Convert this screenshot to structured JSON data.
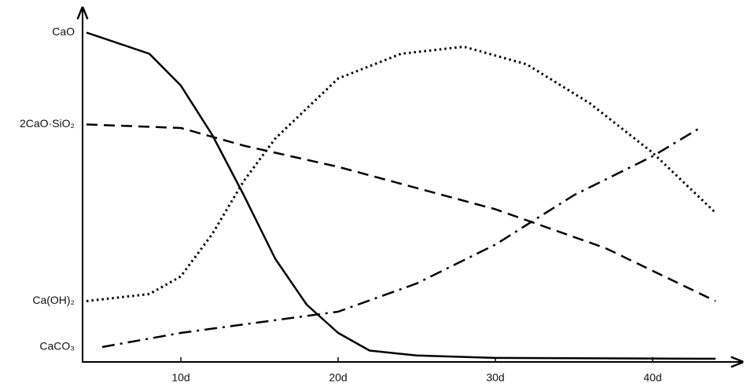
{
  "chart_data": {
    "type": "line",
    "xlim": [
      3.75,
      46
    ],
    "ylim": [
      0,
      100
    ],
    "xticks": [
      {
        "value": 10,
        "label": "10d"
      },
      {
        "value": 20,
        "label": "20d"
      },
      {
        "value": 30,
        "label": "30d"
      },
      {
        "value": 40,
        "label": "40d"
      }
    ],
    "yticks": [
      {
        "value": 93,
        "label": "CaO"
      },
      {
        "value": 67,
        "label": "2CaO·SiO₂"
      },
      {
        "value": 17,
        "label": "Ca(OH)₂"
      },
      {
        "value": 4,
        "label": "CaCO₃"
      }
    ],
    "series": [
      {
        "color": "#000000",
        "dash": "solid",
        "x": [
          4,
          8,
          10,
          12,
          14,
          16,
          18,
          20,
          22,
          25,
          30,
          44
        ],
        "values": [
          93,
          87,
          78,
          64,
          47,
          29,
          16,
          8,
          3,
          1.6,
          0.9,
          0.7
        ]
      },
      {
        "color": "#000000",
        "dash": "dashed",
        "x": [
          4,
          10,
          14,
          20,
          30,
          37,
          44
        ],
        "values": [
          67,
          66,
          61,
          55,
          43,
          32,
          17
        ]
      },
      {
        "color": "#000000",
        "dash": "dotted",
        "x": [
          4,
          8,
          10,
          12,
          14,
          16,
          20,
          24,
          28,
          32,
          36,
          40,
          44
        ],
        "values": [
          17,
          19,
          24,
          36,
          51,
          63,
          80,
          87,
          89,
          84,
          73,
          59,
          42
        ]
      },
      {
        "color": "#000000",
        "dash": "dashdot",
        "x": [
          5,
          10,
          15,
          20,
          25,
          30,
          35,
          40,
          43
        ],
        "values": [
          4,
          8,
          11,
          14,
          22,
          33,
          47,
          58,
          66
        ]
      }
    ]
  }
}
